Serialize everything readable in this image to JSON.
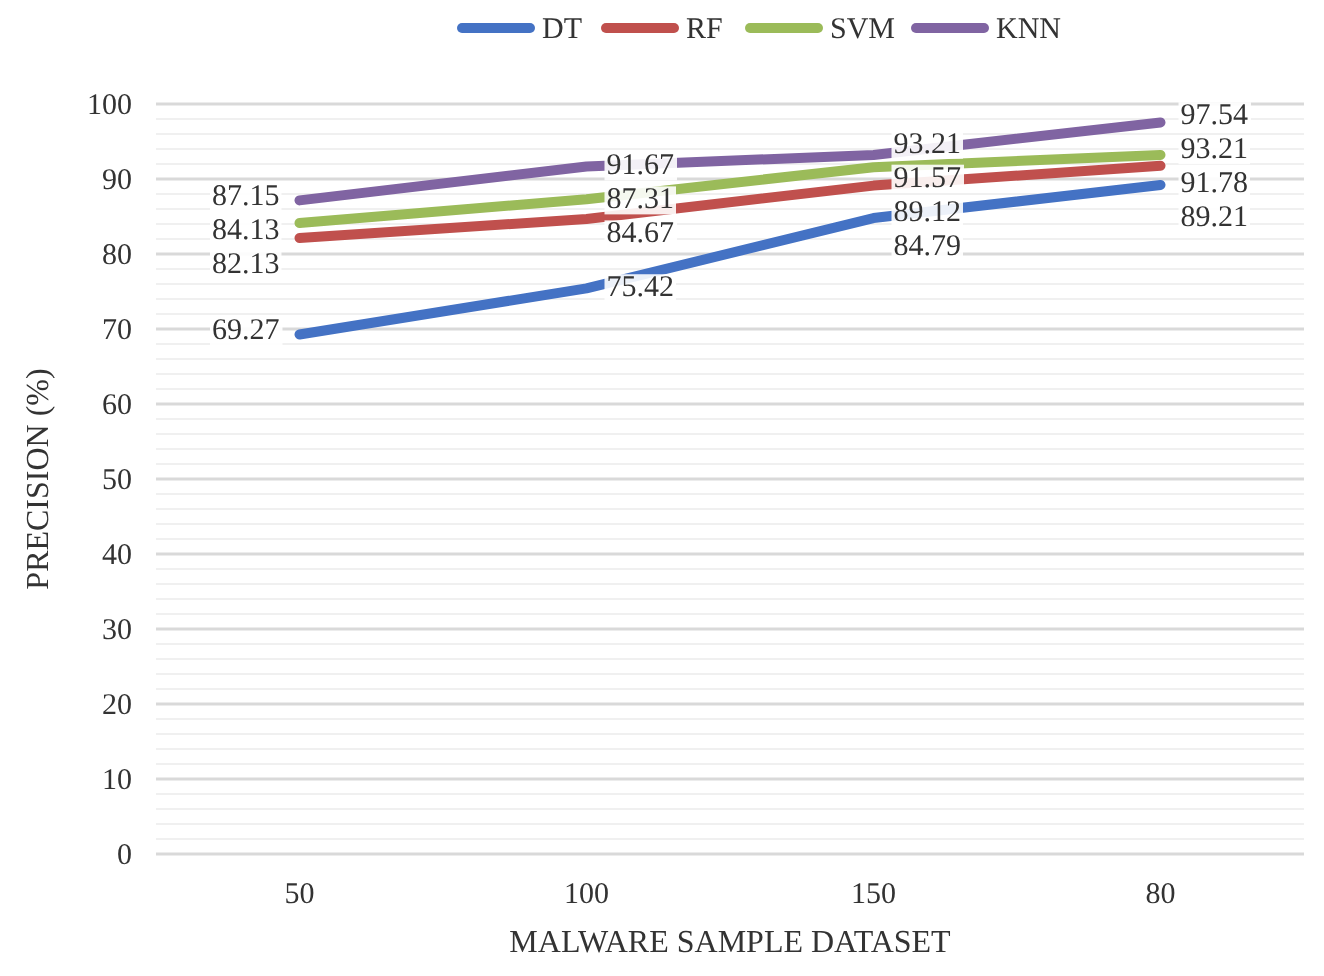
{
  "chart_data": {
    "type": "line",
    "xlabel": "MALWARE SAMPLE DATASET",
    "ylabel": "PRECISION (%)",
    "categories": [
      "50",
      "100",
      "150",
      "80"
    ],
    "series": [
      {
        "name": "DT",
        "color": "#4472c4",
        "values": [
          69.27,
          75.42,
          84.79,
          89.21
        ]
      },
      {
        "name": "RF",
        "color": "#c0504d",
        "values": [
          82.13,
          84.67,
          89.12,
          91.78
        ]
      },
      {
        "name": "SVM",
        "color": "#9bbb59",
        "values": [
          84.13,
          87.31,
          91.57,
          93.21
        ]
      },
      {
        "name": "KNN",
        "color": "#8064a2",
        "values": [
          87.15,
          91.67,
          93.21,
          97.54
        ]
      }
    ],
    "ylim": [
      0,
      100
    ],
    "yticks": [
      0,
      {
        "value": 2,
        "label": null
      },
      {
        "value": 4,
        "label": null
      },
      {
        "value": 6,
        "label": null
      },
      {
        "value": 8,
        "label": null
      },
      10,
      {
        "value": 12,
        "label": null
      },
      {
        "value": 14,
        "label": null
      },
      {
        "value": 16,
        "label": null
      },
      {
        "value": 18,
        "label": null
      },
      20,
      {
        "value": 22,
        "label": null
      },
      {
        "value": 24,
        "label": null
      },
      {
        "value": 26,
        "label": null
      },
      {
        "value": 28,
        "label": null
      },
      30,
      {
        "value": 32,
        "label": null
      },
      {
        "value": 34,
        "label": null
      },
      {
        "value": 36,
        "label": null
      },
      {
        "value": 38,
        "label": null
      },
      40,
      {
        "value": 42,
        "label": null
      },
      {
        "value": 44,
        "label": null
      },
      {
        "value": 46,
        "label": null
      },
      {
        "value": 48,
        "label": null
      },
      50,
      {
        "value": 52,
        "label": null
      },
      {
        "value": 54,
        "label": null
      },
      {
        "value": 56,
        "label": null
      },
      {
        "value": 58,
        "label": null
      },
      60,
      {
        "value": 62,
        "label": null
      },
      {
        "value": 64,
        "label": null
      },
      {
        "value": 66,
        "label": null
      },
      {
        "value": 68,
        "label": null
      },
      70,
      {
        "value": 72,
        "label": null
      },
      {
        "value": 74,
        "label": null
      },
      {
        "value": 76,
        "label": null
      },
      {
        "value": 78,
        "label": null
      },
      80,
      {
        "value": 82,
        "label": null
      },
      {
        "value": 84,
        "label": null
      },
      {
        "value": 86,
        "label": null
      },
      {
        "value": 88,
        "label": null
      },
      90,
      {
        "value": 92,
        "label": null
      },
      {
        "value": 94,
        "label": null
      },
      {
        "value": 96,
        "label": null
      },
      {
        "value": 98,
        "label": null
      },
      100
    ],
    "grid": "y",
    "legend": "top",
    "data_labels": true,
    "marker": "none",
    "line_style": "solid"
  }
}
